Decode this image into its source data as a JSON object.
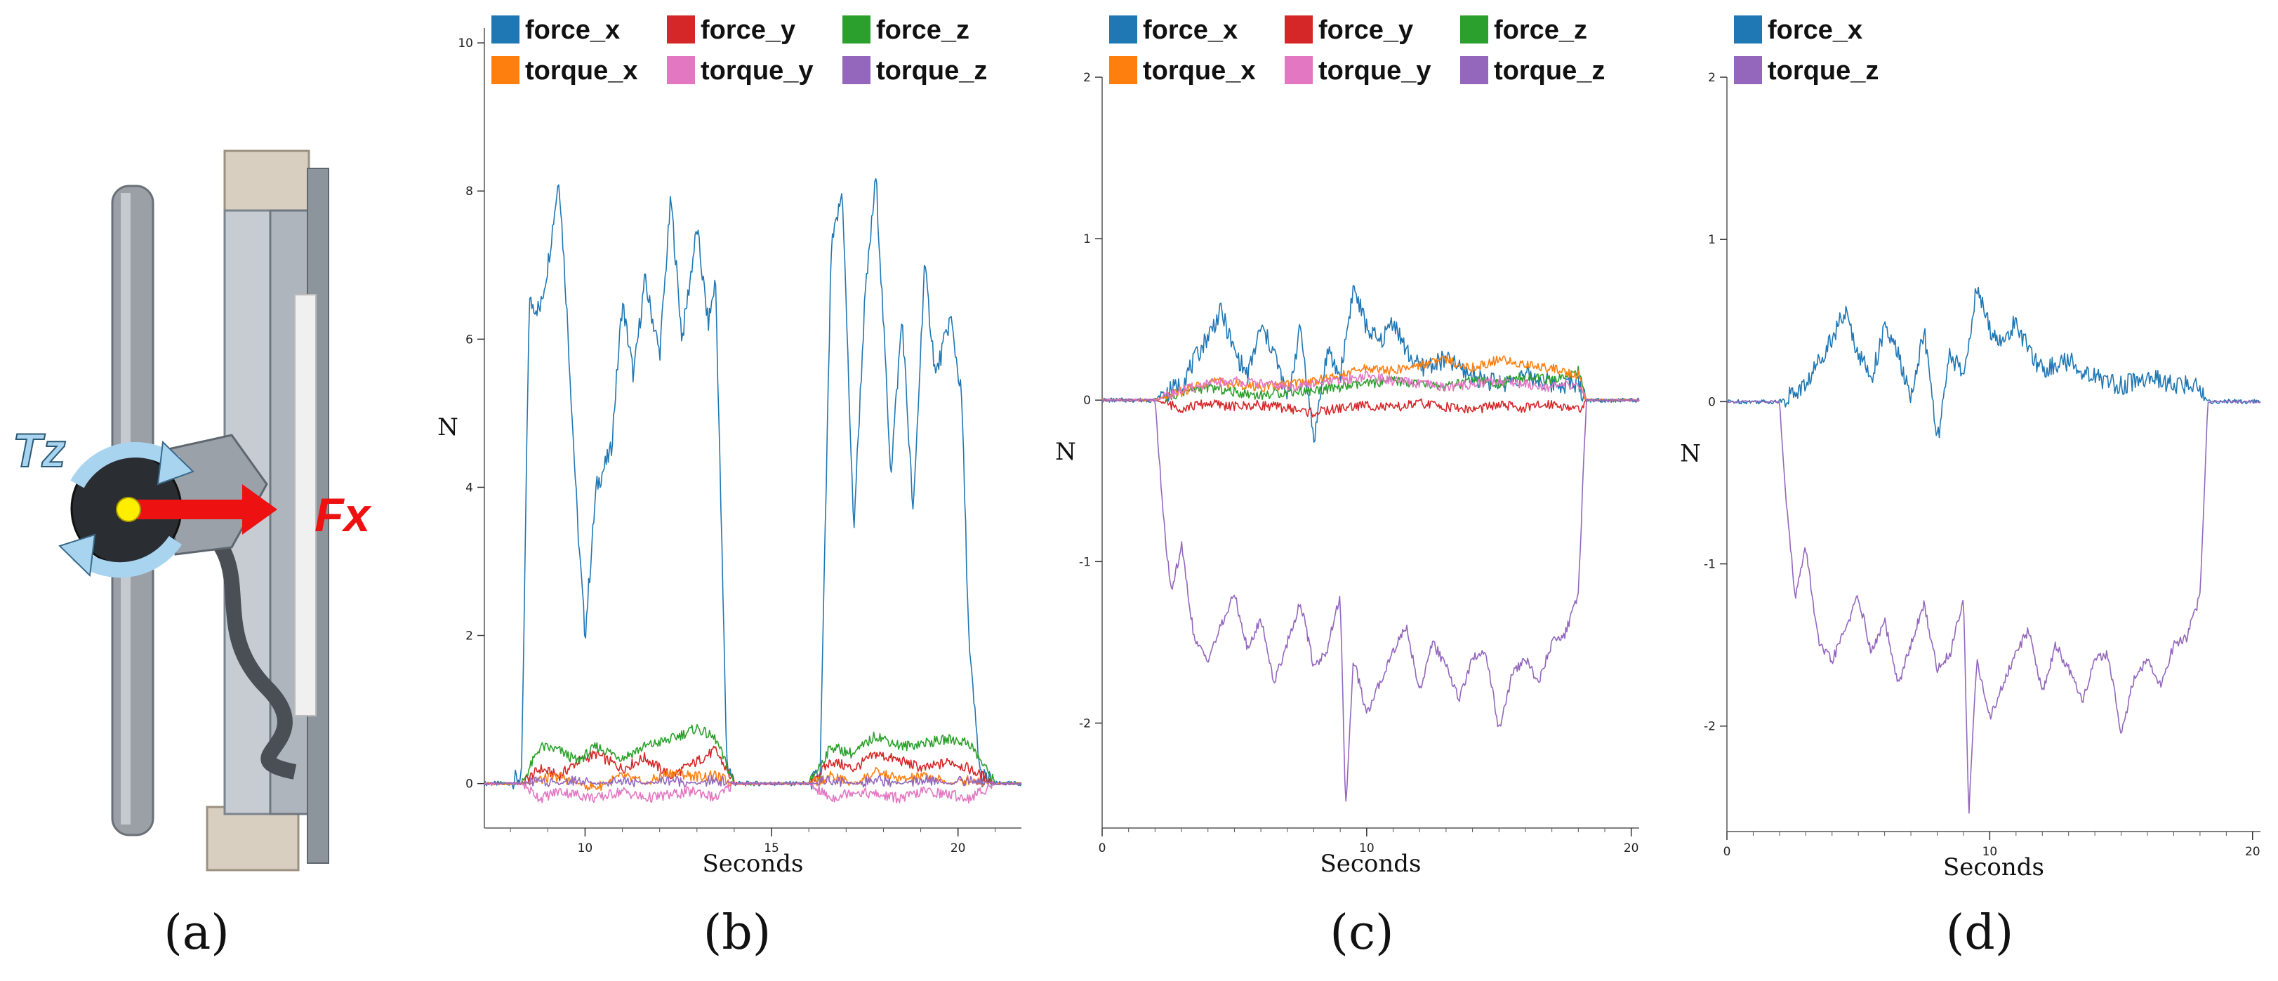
{
  "panel_labels": [
    "(a)",
    "(b)",
    "(c)",
    "(d)"
  ],
  "photo": {
    "torque_label": "Tz",
    "force_label": "Fx",
    "colors": {
      "force_arrow": "#ee1111",
      "torque_ring": "#a9d4f0",
      "dot": "#ffee00"
    }
  },
  "colors": {
    "force_x": "#1f77b4",
    "force_y": "#d62728",
    "force_z": "#2ca02c",
    "torque_x": "#ff7f0e",
    "torque_y": "#e377c2",
    "torque_z": "#9467bd"
  },
  "chart_data": [
    {
      "panel": "(b)",
      "type": "line",
      "xlabel": "Seconds",
      "ylabel": "N",
      "xlim": [
        7.3,
        21.7
      ],
      "ylim": [
        -0.6,
        10.2
      ],
      "xticks": [
        10,
        15,
        20
      ],
      "yticks": [
        0,
        2,
        4,
        6,
        8,
        10
      ],
      "legend": [
        "force_x",
        "force_y",
        "force_z",
        "torque_x",
        "torque_y",
        "torque_z"
      ],
      "series": [
        {
          "name": "force_x",
          "x": [
            7.3,
            8.0,
            8.3,
            8.5,
            8.8,
            9.0,
            9.3,
            9.5,
            9.8,
            10.0,
            10.3,
            10.7,
            11.0,
            11.3,
            11.6,
            12.0,
            12.3,
            12.6,
            13.0,
            13.3,
            13.5,
            13.8,
            14.0,
            15.0,
            16.0,
            16.3,
            16.6,
            16.9,
            17.2,
            17.5,
            17.8,
            18.2,
            18.5,
            18.8,
            19.1,
            19.4,
            19.8,
            20.1,
            20.3,
            20.6,
            21.0,
            21.7
          ],
          "y": [
            0.0,
            0.0,
            0.1,
            6.5,
            6.4,
            7.0,
            8.2,
            6.5,
            3.5,
            2.0,
            4.0,
            4.5,
            6.5,
            5.5,
            6.8,
            5.8,
            7.9,
            6.0,
            7.5,
            6.2,
            6.8,
            0.3,
            0.0,
            0.0,
            0.0,
            0.1,
            7.2,
            8.0,
            3.4,
            6.5,
            8.2,
            4.2,
            6.3,
            3.6,
            7.0,
            5.5,
            6.3,
            5.2,
            1.8,
            0.1,
            0.0,
            0.0
          ]
        },
        {
          "name": "force_y",
          "x": [
            7.3,
            8.3,
            8.8,
            9.3,
            9.8,
            10.3,
            11.0,
            11.6,
            12.3,
            13.0,
            13.5,
            14.0,
            16.0,
            16.6,
            17.2,
            17.8,
            18.5,
            19.1,
            19.8,
            20.3,
            21.0,
            21.7
          ],
          "y": [
            0.0,
            0.0,
            0.2,
            0.1,
            0.3,
            0.4,
            0.2,
            0.35,
            0.1,
            0.3,
            0.45,
            0.0,
            0.0,
            0.3,
            0.2,
            0.4,
            0.3,
            0.2,
            0.3,
            0.2,
            0.0,
            0.0
          ]
        },
        {
          "name": "force_z",
          "x": [
            7.3,
            8.3,
            8.8,
            9.3,
            9.8,
            10.3,
            11.0,
            11.6,
            12.3,
            13.0,
            13.5,
            14.0,
            16.0,
            16.6,
            17.2,
            17.8,
            18.5,
            19.1,
            19.8,
            20.3,
            21.0,
            21.7
          ],
          "y": [
            0.0,
            0.0,
            0.5,
            0.45,
            0.3,
            0.5,
            0.35,
            0.5,
            0.6,
            0.75,
            0.6,
            0.0,
            0.0,
            0.5,
            0.4,
            0.65,
            0.5,
            0.55,
            0.6,
            0.55,
            0.0,
            0.0
          ]
        },
        {
          "name": "torque_x",
          "x": [
            7.3,
            8.3,
            8.8,
            9.3,
            9.8,
            10.3,
            11.0,
            11.6,
            12.3,
            13.0,
            13.5,
            14.0,
            16.0,
            16.6,
            17.2,
            17.8,
            18.5,
            19.1,
            19.8,
            20.3,
            21.0,
            21.7
          ],
          "y": [
            0.0,
            0.0,
            0.05,
            0.1,
            0.0,
            -0.05,
            0.1,
            0.0,
            0.15,
            0.1,
            0.1,
            0.0,
            0.0,
            0.1,
            0.0,
            0.15,
            0.05,
            0.1,
            0.0,
            0.05,
            0.0,
            0.0
          ]
        },
        {
          "name": "torque_y",
          "x": [
            7.3,
            8.3,
            8.8,
            9.3,
            9.8,
            10.3,
            11.0,
            11.6,
            12.3,
            13.0,
            13.5,
            14.0,
            16.0,
            16.6,
            17.2,
            17.8,
            18.5,
            19.1,
            19.8,
            20.3,
            21.0,
            21.7
          ],
          "y": [
            0.0,
            0.0,
            -0.2,
            -0.1,
            -0.15,
            -0.2,
            -0.1,
            -0.2,
            -0.15,
            -0.1,
            -0.2,
            0.0,
            0.0,
            -0.2,
            -0.1,
            -0.15,
            -0.2,
            -0.1,
            -0.15,
            -0.2,
            0.0,
            0.0
          ]
        },
        {
          "name": "torque_z",
          "x": [
            7.3,
            8.3,
            8.8,
            9.3,
            9.8,
            10.3,
            11.0,
            11.6,
            12.3,
            13.0,
            13.5,
            14.0,
            16.0,
            16.6,
            17.2,
            17.8,
            18.5,
            19.1,
            19.8,
            20.3,
            21.0,
            21.7
          ],
          "y": [
            0.0,
            0.0,
            0.05,
            0.0,
            0.05,
            0.0,
            0.05,
            0.0,
            0.05,
            0.0,
            0.05,
            0.0,
            0.0,
            0.05,
            0.0,
            0.05,
            0.0,
            0.05,
            0.0,
            0.05,
            0.0,
            0.0
          ]
        }
      ]
    },
    {
      "panel": "(c)",
      "type": "line",
      "xlabel": "Seconds",
      "ylabel": "N",
      "xlim": [
        0,
        20.3
      ],
      "ylim": [
        -2.65,
        2.0
      ],
      "xticks": [
        0,
        10,
        20
      ],
      "yticks": [
        -2,
        -1,
        0,
        1,
        2
      ],
      "legend": [
        "force_x",
        "force_y",
        "force_z",
        "torque_x",
        "torque_y",
        "torque_z"
      ],
      "series": [
        {
          "name": "force_x",
          "x": [
            0,
            2.0,
            2.5,
            3.0,
            3.5,
            4.0,
            4.5,
            5.0,
            5.5,
            6.0,
            6.5,
            7.0,
            7.5,
            8.0,
            8.5,
            9.0,
            9.5,
            10.0,
            10.5,
            11.0,
            11.5,
            12.0,
            13.0,
            14.0,
            15.0,
            16.0,
            17.0,
            18.0,
            18.3,
            19.0,
            20.3
          ],
          "y": [
            0.0,
            0.0,
            0.05,
            0.1,
            0.25,
            0.4,
            0.55,
            0.3,
            0.15,
            0.45,
            0.3,
            0.0,
            0.45,
            -0.25,
            0.3,
            0.15,
            0.7,
            0.45,
            0.35,
            0.5,
            0.3,
            0.2,
            0.25,
            0.15,
            0.1,
            0.15,
            0.1,
            0.1,
            0.0,
            0.0,
            0.0
          ]
        },
        {
          "name": "force_y",
          "x": [
            0,
            2.0,
            3.0,
            4.0,
            5.0,
            6.0,
            7.0,
            8.0,
            9.0,
            10.0,
            11.0,
            12.0,
            13.0,
            14.0,
            15.0,
            16.0,
            17.0,
            18.0,
            18.3,
            20.3
          ],
          "y": [
            0.0,
            0.0,
            -0.05,
            -0.02,
            -0.04,
            -0.03,
            -0.05,
            -0.08,
            -0.05,
            -0.03,
            -0.05,
            -0.02,
            -0.04,
            -0.06,
            -0.03,
            -0.05,
            -0.02,
            -0.06,
            0.0,
            0.0
          ]
        },
        {
          "name": "force_z",
          "x": [
            0,
            2.0,
            3.0,
            4.0,
            5.0,
            6.0,
            7.0,
            8.0,
            9.0,
            10.0,
            11.0,
            12.0,
            13.0,
            14.0,
            15.0,
            16.0,
            17.0,
            18.0,
            18.3,
            20.3
          ],
          "y": [
            0.0,
            0.0,
            0.05,
            0.08,
            0.05,
            0.03,
            0.05,
            0.06,
            0.08,
            0.1,
            0.12,
            0.1,
            0.08,
            0.12,
            0.1,
            0.15,
            0.12,
            0.18,
            0.0,
            0.0
          ]
        },
        {
          "name": "torque_x",
          "x": [
            0,
            2.0,
            3.0,
            4.0,
            5.0,
            6.0,
            7.0,
            8.0,
            9.0,
            10.0,
            11.0,
            12.0,
            13.0,
            14.0,
            15.0,
            16.0,
            17.0,
            18.0,
            18.3,
            20.3
          ],
          "y": [
            0.0,
            0.0,
            0.05,
            0.12,
            0.1,
            0.08,
            0.1,
            0.12,
            0.15,
            0.2,
            0.18,
            0.22,
            0.25,
            0.2,
            0.25,
            0.22,
            0.2,
            0.15,
            0.0,
            0.0
          ]
        },
        {
          "name": "torque_y",
          "x": [
            0,
            2.0,
            3.0,
            4.0,
            5.0,
            6.0,
            7.0,
            8.0,
            9.0,
            10.0,
            11.0,
            12.0,
            13.0,
            14.0,
            15.0,
            16.0,
            17.0,
            18.0,
            18.3,
            20.3
          ],
          "y": [
            0.0,
            0.0,
            0.06,
            0.1,
            0.12,
            0.1,
            0.08,
            0.1,
            0.12,
            0.15,
            0.12,
            0.1,
            0.08,
            0.1,
            0.12,
            0.1,
            0.08,
            0.1,
            0.0,
            0.0
          ]
        },
        {
          "name": "torque_z",
          "x": [
            0,
            2.0,
            2.3,
            2.6,
            3.0,
            3.5,
            4.0,
            4.5,
            5.0,
            5.5,
            6.0,
            6.5,
            7.0,
            7.5,
            8.0,
            8.5,
            9.0,
            9.2,
            9.5,
            10.0,
            10.5,
            11.0,
            11.5,
            12.0,
            12.5,
            13.0,
            13.5,
            14.0,
            14.5,
            15.0,
            15.5,
            16.0,
            16.5,
            17.0,
            17.5,
            18.0,
            18.3,
            19.0,
            20.3
          ],
          "y": [
            0.0,
            0.0,
            -0.7,
            -1.2,
            -0.9,
            -1.5,
            -1.6,
            -1.4,
            -1.2,
            -1.55,
            -1.35,
            -1.75,
            -1.5,
            -1.25,
            -1.65,
            -1.55,
            -1.2,
            -2.55,
            -1.6,
            -1.95,
            -1.75,
            -1.55,
            -1.4,
            -1.8,
            -1.5,
            -1.65,
            -1.85,
            -1.6,
            -1.55,
            -2.05,
            -1.7,
            -1.6,
            -1.75,
            -1.5,
            -1.45,
            -1.2,
            0.0,
            0.0,
            0.0
          ]
        }
      ]
    },
    {
      "panel": "(d)",
      "type": "line",
      "xlabel": "Seconds",
      "ylabel": "N",
      "xlim": [
        0,
        20.3
      ],
      "ylim": [
        -2.65,
        2.0
      ],
      "xticks": [
        0,
        10,
        20
      ],
      "yticks": [
        -2,
        -1,
        0,
        1,
        2
      ],
      "legend": [
        "force_x",
        "torque_z"
      ],
      "series": [
        {
          "name": "force_x",
          "x": [
            0,
            2.0,
            2.5,
            3.0,
            3.5,
            4.0,
            4.5,
            5.0,
            5.5,
            6.0,
            6.5,
            7.0,
            7.5,
            8.0,
            8.5,
            9.0,
            9.5,
            10.0,
            10.5,
            11.0,
            11.5,
            12.0,
            13.0,
            14.0,
            15.0,
            16.0,
            17.0,
            18.0,
            18.3,
            19.0,
            20.3
          ],
          "y": [
            0.0,
            0.0,
            0.05,
            0.1,
            0.25,
            0.4,
            0.55,
            0.3,
            0.15,
            0.45,
            0.3,
            0.0,
            0.45,
            -0.25,
            0.3,
            0.15,
            0.7,
            0.45,
            0.35,
            0.5,
            0.3,
            0.2,
            0.25,
            0.15,
            0.1,
            0.15,
            0.1,
            0.1,
            0.0,
            0.0,
            0.0
          ]
        },
        {
          "name": "torque_z",
          "x": [
            0,
            2.0,
            2.3,
            2.6,
            3.0,
            3.5,
            4.0,
            4.5,
            5.0,
            5.5,
            6.0,
            6.5,
            7.0,
            7.5,
            8.0,
            8.5,
            9.0,
            9.2,
            9.5,
            10.0,
            10.5,
            11.0,
            11.5,
            12.0,
            12.5,
            13.0,
            13.5,
            14.0,
            14.5,
            15.0,
            15.5,
            16.0,
            16.5,
            17.0,
            17.5,
            18.0,
            18.3,
            19.0,
            20.3
          ],
          "y": [
            0.0,
            0.0,
            -0.7,
            -1.2,
            -0.9,
            -1.5,
            -1.6,
            -1.4,
            -1.2,
            -1.55,
            -1.35,
            -1.75,
            -1.5,
            -1.25,
            -1.65,
            -1.55,
            -1.2,
            -2.55,
            -1.6,
            -1.95,
            -1.75,
            -1.55,
            -1.4,
            -1.8,
            -1.5,
            -1.65,
            -1.85,
            -1.6,
            -1.55,
            -2.05,
            -1.7,
            -1.6,
            -1.75,
            -1.5,
            -1.45,
            -1.2,
            0.0,
            0.0,
            0.0
          ]
        }
      ]
    }
  ]
}
